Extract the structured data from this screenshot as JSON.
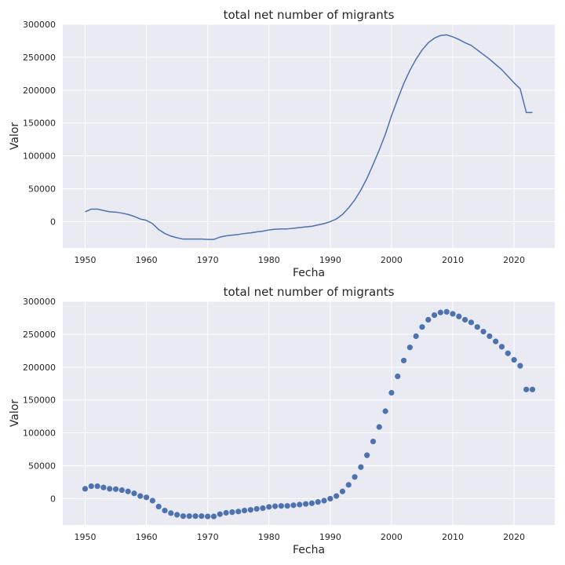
{
  "chart_data": [
    {
      "type": "line",
      "title": "total net number of migrants",
      "xlabel": "Fecha",
      "ylabel": "Valor",
      "xlim": [
        1946.35,
        2026.65
      ],
      "ylim": [
        -40000,
        300000
      ],
      "xticks": [
        "1950",
        "1960",
        "1970",
        "1980",
        "1990",
        "2000",
        "2010",
        "2020"
      ],
      "yticks": [
        "0",
        "50000",
        "100000",
        "150000",
        "200000",
        "250000",
        "300000"
      ],
      "grid": true,
      "style": "seaborn-darkgrid",
      "colors": {
        "background": "#EAEAF2",
        "grid": "#FFFFFF",
        "series": "#4C72B0"
      },
      "series": [
        {
          "x": [
            1950,
            1951,
            1952,
            1953,
            1954,
            1955,
            1956,
            1957,
            1958,
            1959,
            1960,
            1961,
            1962,
            1963,
            1964,
            1965,
            1966,
            1967,
            1968,
            1969,
            1970,
            1971,
            1972,
            1973,
            1974,
            1975,
            1976,
            1977,
            1978,
            1979,
            1980,
            1981,
            1982,
            1983,
            1984,
            1985,
            1986,
            1987,
            1988,
            1989,
            1990,
            1991,
            1992,
            1993,
            1994,
            1995,
            1996,
            1997,
            1998,
            1999,
            2000,
            2001,
            2002,
            2003,
            2004,
            2005,
            2006,
            2007,
            2008,
            2009,
            2010,
            2011,
            2012,
            2013,
            2014,
            2015,
            2016,
            2017,
            2018,
            2019,
            2020,
            2021,
            2022,
            2023
          ],
          "values": [
            15000,
            19000,
            19000,
            17000,
            15000,
            14500,
            13000,
            11000,
            8000,
            4000,
            2000,
            -3000,
            -12000,
            -18000,
            -22000,
            -24500,
            -26500,
            -26500,
            -26500,
            -26500,
            -27000,
            -27000,
            -23500,
            -21500,
            -20500,
            -19500,
            -18000,
            -17000,
            -15500,
            -14500,
            -12500,
            -11500,
            -11000,
            -11000,
            -10000,
            -9000,
            -8000,
            -7000,
            -5000,
            -3000,
            0,
            4000,
            11000,
            21000,
            33000,
            48000,
            66000,
            87000,
            109000,
            133000,
            161000,
            186000,
            210000,
            230000,
            247000,
            261000,
            272000,
            279000,
            283000,
            284000,
            281000,
            277000,
            272000,
            268000,
            261000,
            254000,
            247000,
            239000,
            231000,
            221000,
            211000,
            202000,
            166000,
            166000
          ]
        }
      ]
    },
    {
      "type": "scatter",
      "title": "total net number of migrants",
      "xlabel": "Fecha",
      "ylabel": "Valor",
      "xlim": [
        1946.35,
        2026.65
      ],
      "ylim": [
        -40000,
        300000
      ],
      "xticks": [
        "1950",
        "1960",
        "1970",
        "1980",
        "1990",
        "2000",
        "2010",
        "2020"
      ],
      "yticks": [
        "0",
        "50000",
        "100000",
        "150000",
        "200000",
        "250000",
        "300000"
      ],
      "grid": true,
      "style": "seaborn-darkgrid",
      "colors": {
        "background": "#EAEAF2",
        "grid": "#FFFFFF",
        "series": "#4C72B0"
      },
      "series": [
        {
          "x": [
            1950,
            1951,
            1952,
            1953,
            1954,
            1955,
            1956,
            1957,
            1958,
            1959,
            1960,
            1961,
            1962,
            1963,
            1964,
            1965,
            1966,
            1967,
            1968,
            1969,
            1970,
            1971,
            1972,
            1973,
            1974,
            1975,
            1976,
            1977,
            1978,
            1979,
            1980,
            1981,
            1982,
            1983,
            1984,
            1985,
            1986,
            1987,
            1988,
            1989,
            1990,
            1991,
            1992,
            1993,
            1994,
            1995,
            1996,
            1997,
            1998,
            1999,
            2000,
            2001,
            2002,
            2003,
            2004,
            2005,
            2006,
            2007,
            2008,
            2009,
            2010,
            2011,
            2012,
            2013,
            2014,
            2015,
            2016,
            2017,
            2018,
            2019,
            2020,
            2021,
            2022,
            2023
          ],
          "values": [
            15000,
            19000,
            19000,
            17000,
            15000,
            14500,
            13000,
            11000,
            8000,
            4000,
            2000,
            -3000,
            -12000,
            -18000,
            -22000,
            -24500,
            -26500,
            -26500,
            -26500,
            -26500,
            -27000,
            -27000,
            -23500,
            -21500,
            -20500,
            -19500,
            -18000,
            -17000,
            -15500,
            -14500,
            -12500,
            -11500,
            -11000,
            -11000,
            -10000,
            -9000,
            -8000,
            -7000,
            -5000,
            -3000,
            0,
            4000,
            11000,
            21000,
            33000,
            48000,
            66000,
            87000,
            109000,
            133000,
            161000,
            186000,
            210000,
            230000,
            247000,
            261000,
            272000,
            279000,
            283000,
            284000,
            281000,
            277000,
            272000,
            268000,
            261000,
            254000,
            247000,
            239000,
            231000,
            221000,
            211000,
            202000,
            166000,
            166000
          ]
        }
      ]
    }
  ]
}
